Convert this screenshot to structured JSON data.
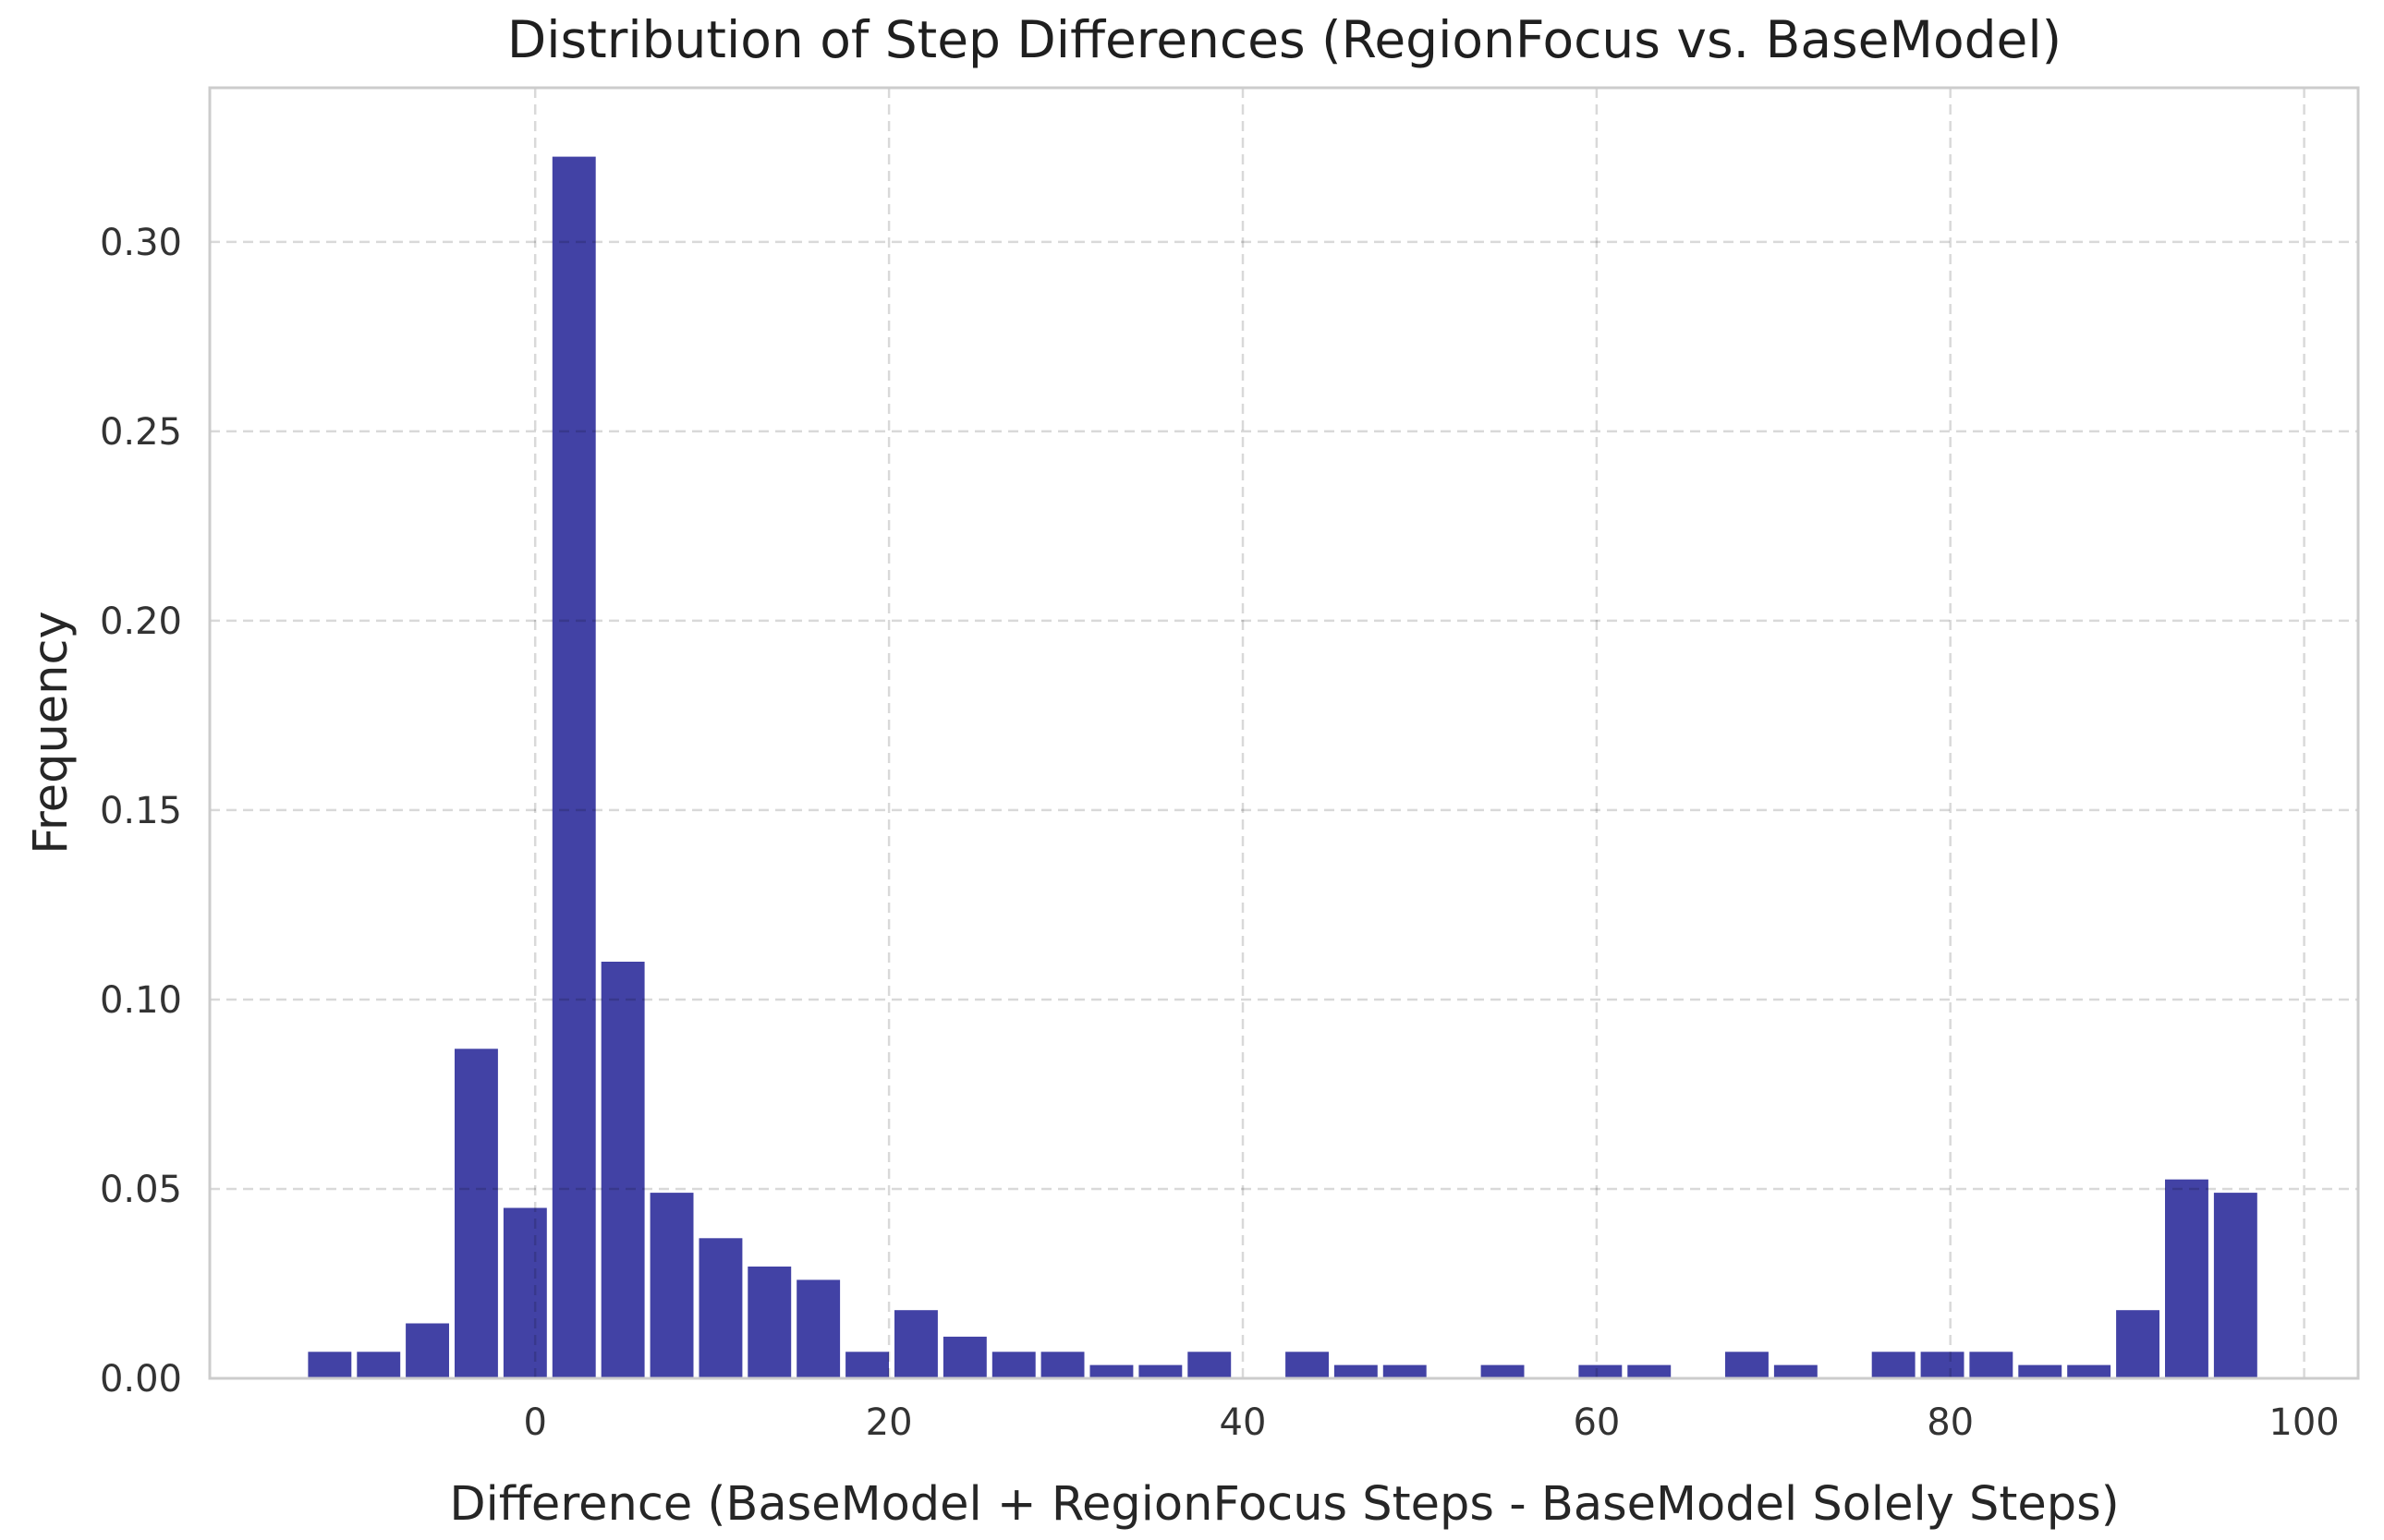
{
  "chart_data": {
    "type": "bar",
    "subtype": "histogram",
    "title": "Distribution of Step Differences (RegionFocus vs. BaseModel)",
    "xlabel": "Difference (BaseModel + RegionFocus Steps - BaseModel Solely Steps)",
    "ylabel": "Frequency",
    "bar_color": "#4242a5",
    "bar_gap_color": "#ffffff",
    "spine_color": "#cccccc",
    "grid_color": "rgba(0,0,0,0.15)",
    "background_color": "#ffffff",
    "grid_on": true,
    "grid_style": "dashed",
    "legend_position": "none",
    "xlim": [
      -18.4,
      103.05
    ],
    "ylim": [
      0,
      0.3407
    ],
    "xticks": [
      {
        "value": 0,
        "label": "0"
      },
      {
        "value": 20,
        "label": "20"
      },
      {
        "value": 40,
        "label": "40"
      },
      {
        "value": 60,
        "label": "60"
      },
      {
        "value": 80,
        "label": "80"
      },
      {
        "value": 100,
        "label": "100"
      }
    ],
    "yticks": [
      {
        "value": 0.0,
        "label": "0.00"
      },
      {
        "value": 0.05,
        "label": "0.05"
      },
      {
        "value": 0.1,
        "label": "0.10"
      },
      {
        "value": 0.15,
        "label": "0.15"
      },
      {
        "value": 0.2,
        "label": "0.20"
      },
      {
        "value": 0.25,
        "label": "0.25"
      },
      {
        "value": 0.3,
        "label": "0.30"
      }
    ],
    "bin_start": -13.0,
    "bin_width": 2.7625,
    "bin_count": 40,
    "frequencies": [
      0.007,
      0.007,
      0.0145,
      0.087,
      0.045,
      0.3225,
      0.11,
      0.049,
      0.037,
      0.0295,
      0.026,
      0.007,
      0.018,
      0.011,
      0.007,
      0.007,
      0.0035,
      0.0035,
      0.007,
      0,
      0.007,
      0.0035,
      0.0035,
      0,
      0.0035,
      0,
      0.0035,
      0.0035,
      0,
      0.007,
      0.0035,
      0,
      0.007,
      0.007,
      0.007,
      0.0035,
      0.0035,
      0.018,
      0.0525,
      0.049
    ]
  }
}
